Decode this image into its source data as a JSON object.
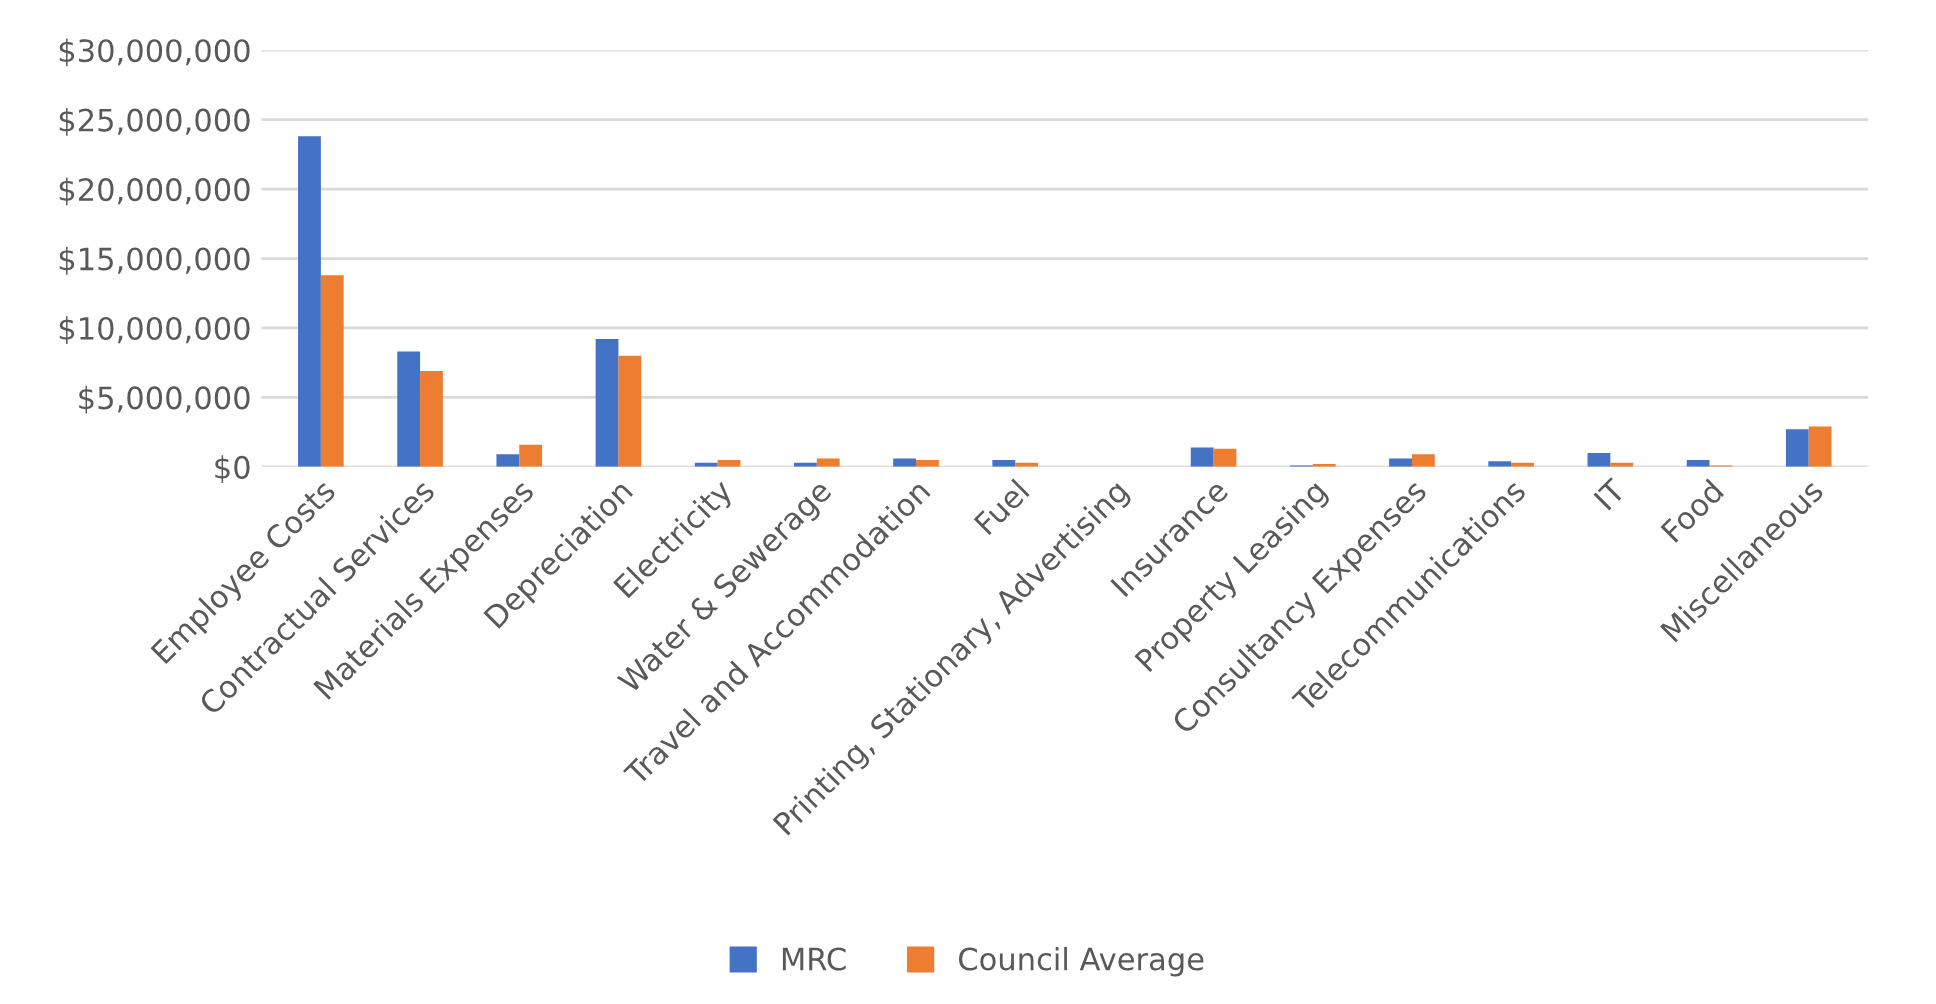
{
  "chart_data": {
    "type": "bar",
    "categories": [
      "Employee Costs",
      "Contractual Services",
      "Materials Expenses",
      "Depreciation",
      "Electricity",
      "Water & Sewerage",
      "Travel and Accommodation",
      "Fuel",
      "Printing, Stationary, Advertising",
      "Insurance",
      "Property Leasing",
      "Consultancy Expenses",
      "Telecommunications",
      "IT",
      "Food",
      "Miscellaneous"
    ],
    "series": [
      {
        "name": "MRC",
        "color": "#4472c4",
        "values": [
          23800000,
          8300000,
          900000,
          9200000,
          300000,
          300000,
          600000,
          500000,
          0,
          1400000,
          100000,
          600000,
          400000,
          1000000,
          500000,
          2700000
        ]
      },
      {
        "name": "Council Average",
        "color": "#ed7d31",
        "values": [
          13800000,
          6900000,
          1600000,
          8000000,
          500000,
          600000,
          500000,
          300000,
          0,
          1300000,
          200000,
          900000,
          300000,
          300000,
          100000,
          2900000
        ]
      }
    ],
    "ylim": [
      0,
      30000000
    ],
    "yticks": [
      {
        "value": 0,
        "label": "$0"
      },
      {
        "value": 5000000,
        "label": "$5,000,000"
      },
      {
        "value": 10000000,
        "label": "$10,000,000"
      },
      {
        "value": 15000000,
        "label": "$15,000,000"
      },
      {
        "value": 20000000,
        "label": "$20,000,000"
      },
      {
        "value": 25000000,
        "label": "$25,000,000"
      },
      {
        "value": 30000000,
        "label": "$30,000,000"
      }
    ],
    "grid": "y",
    "legend": "bottom"
  }
}
